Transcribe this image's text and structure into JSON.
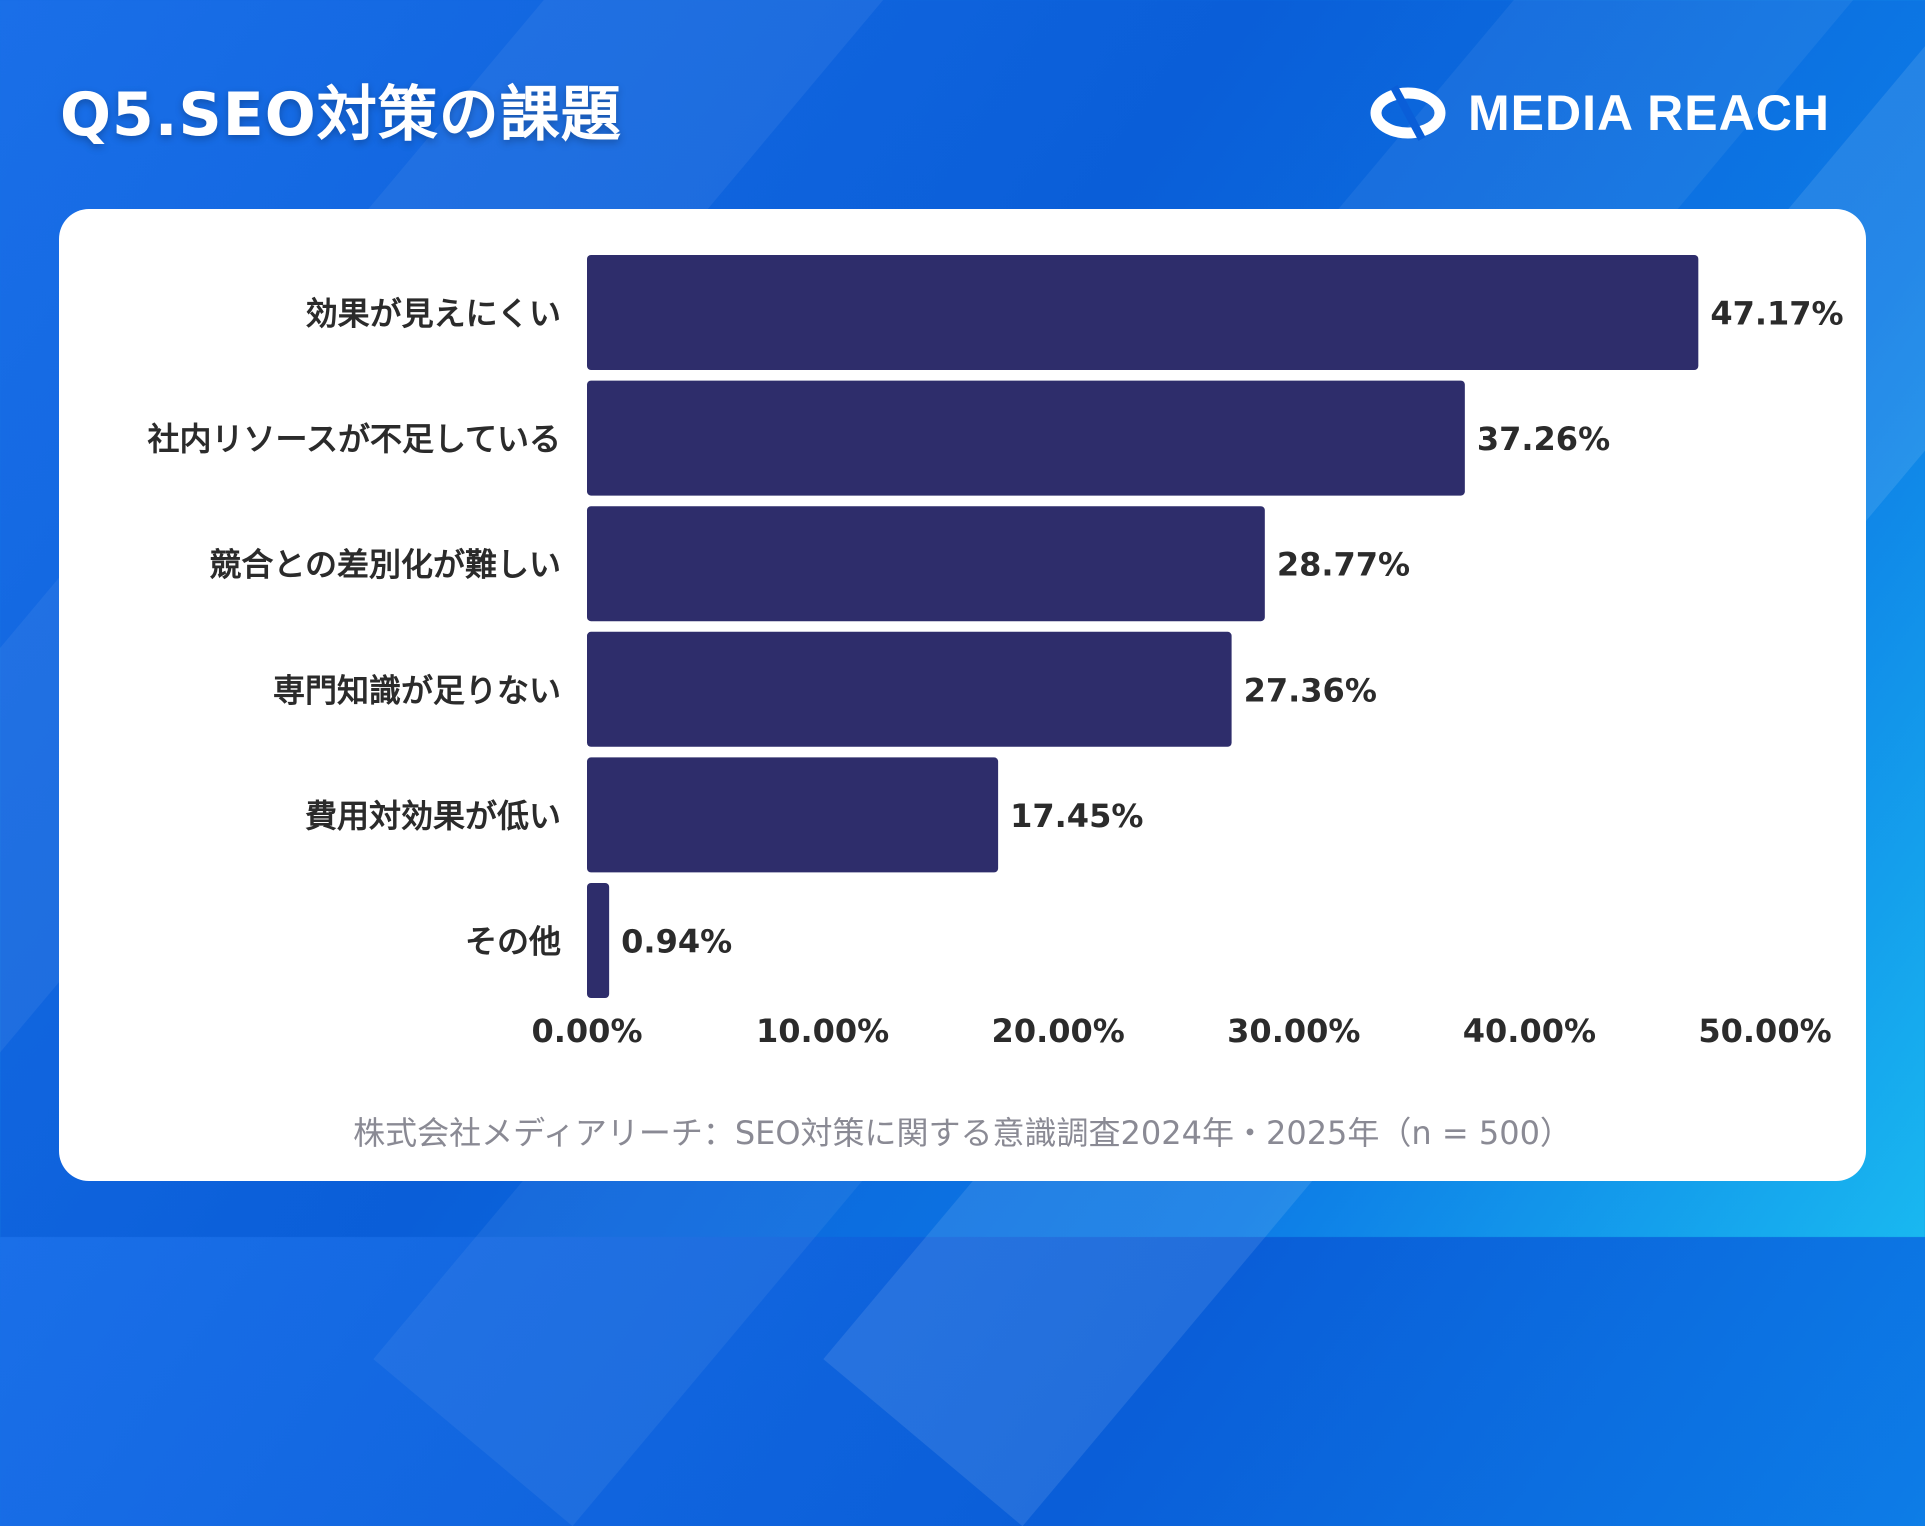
{
  "header": {
    "title": "Q5.SEO対策の課題",
    "logo_text": "MEDIA REACH"
  },
  "colors": {
    "bar": "#2e2d6b",
    "background": "#0a5ed8",
    "text": "#2b2b2b"
  },
  "chart_data": {
    "type": "bar",
    "orientation": "horizontal",
    "categories": [
      "効果が見えにくい",
      "社内リソースが不足している",
      "競合との差別化が難しい",
      "専門知識が足りない",
      "費用対効果が低い",
      "その他"
    ],
    "values": [
      47.17,
      37.26,
      28.77,
      27.36,
      17.45,
      0.94
    ],
    "value_labels": [
      "47.17%",
      "37.26%",
      "28.77%",
      "27.36%",
      "17.45%",
      "0.94%"
    ],
    "xlim": [
      0,
      50
    ],
    "x_ticks": [
      0,
      10,
      20,
      30,
      40,
      50
    ],
    "x_tick_labels": [
      "0.00%",
      "10.00%",
      "20.00%",
      "30.00%",
      "40.00%",
      "50.00%"
    ],
    "grid": false,
    "legend": "none"
  },
  "footer": {
    "source": "株式会社メディアリーチ：SEO対策に関する意識調査2024年・2025年（n = 500）"
  }
}
